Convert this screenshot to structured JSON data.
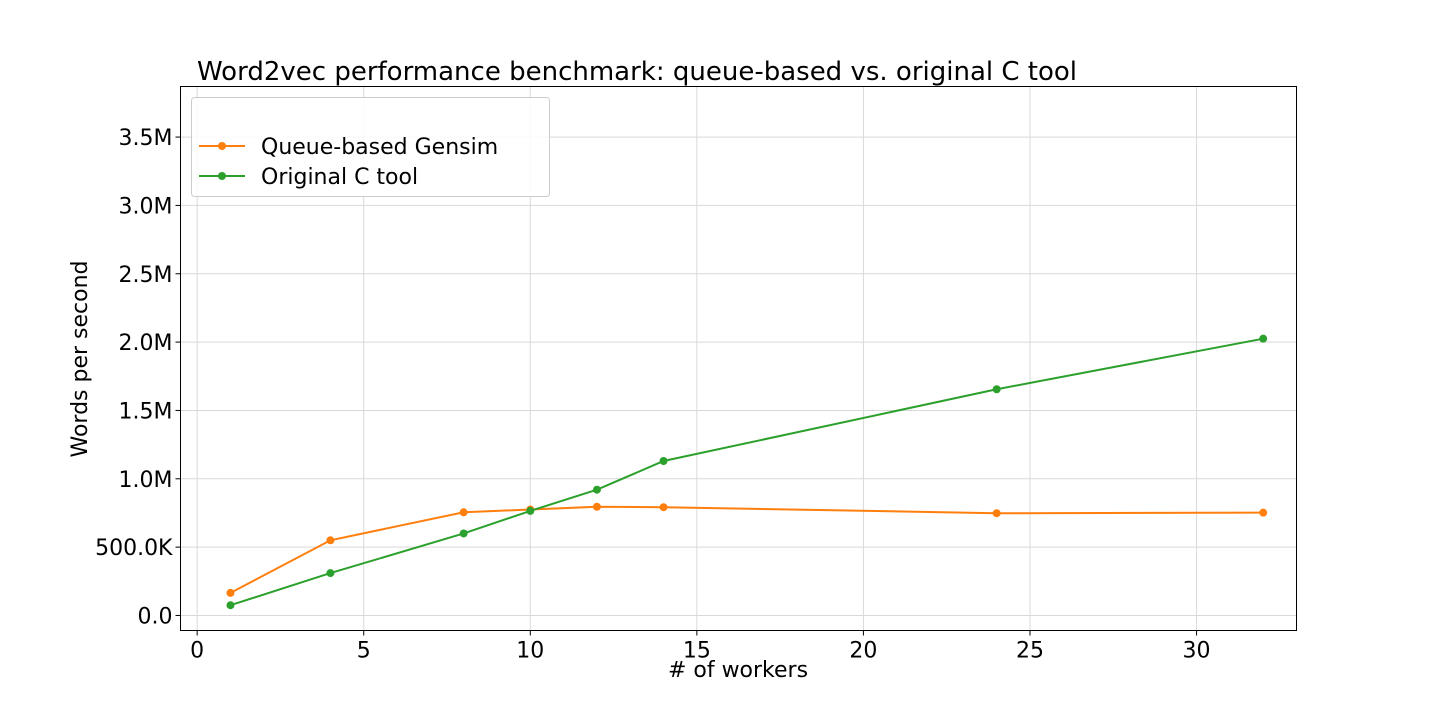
{
  "chart_data": {
    "type": "line",
    "title": "Word2vec performance benchmark: queue-based vs. original C tool",
    "xlabel": "# of workers",
    "ylabel": "Words per second",
    "xlim": [
      -0.5,
      33
    ],
    "ylim": [
      -110000,
      3870000
    ],
    "x_ticks": [
      0,
      5,
      10,
      15,
      20,
      25,
      30
    ],
    "x_tick_labels": [
      "0",
      "5",
      "10",
      "15",
      "20",
      "25",
      "30"
    ],
    "y_ticks": [
      0,
      500000,
      1000000,
      1500000,
      2000000,
      2500000,
      3000000,
      3500000
    ],
    "y_tick_labels": [
      "0.0",
      "500.0K",
      "1.0M",
      "1.5M",
      "2.0M",
      "2.5M",
      "3.0M",
      "3.5M"
    ],
    "grid": true,
    "legend_position": "top-left",
    "series": [
      {
        "name": "Queue-based Gensim",
        "color": "#ff7f0e",
        "x": [
          1,
          4,
          8,
          10,
          12,
          14,
          24,
          32
        ],
        "y": [
          165000,
          550000,
          755000,
          775000,
          795000,
          792000,
          748000,
          752000
        ]
      },
      {
        "name": "Original C tool",
        "color": "#2ca02c",
        "x": [
          1,
          4,
          8,
          10,
          12,
          14,
          24,
          32
        ],
        "y": [
          75000,
          310000,
          600000,
          765000,
          920000,
          1130000,
          1655000,
          2025000
        ]
      }
    ]
  }
}
